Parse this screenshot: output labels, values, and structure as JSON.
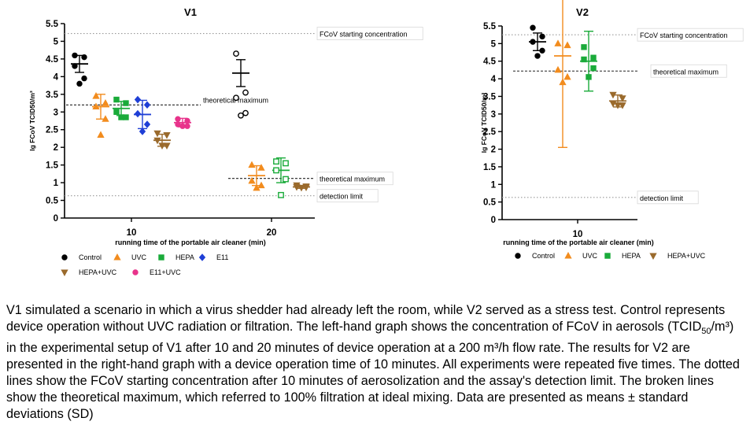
{
  "chart_data": [
    {
      "type": "scatter",
      "title": "V1",
      "xlabel": "running time of the portable air cleaner (min)",
      "ylabel": "lg FCoV TCID50/m³",
      "ylim": [
        0,
        5.5
      ],
      "yticks": [
        "0",
        "0.5",
        "1",
        "1.5",
        "2",
        "2.5",
        "3",
        "3.5",
        "4",
        "4.5",
        "5",
        "5.5"
      ],
      "categories": [
        "10",
        "20"
      ],
      "reference_lines": [
        {
          "label": "FCoV starting concentration",
          "y": 5.22,
          "style": "dotted"
        },
        {
          "label": "detection limit",
          "y": 0.63,
          "style": "dotted"
        },
        {
          "label": "theoretical maximum",
          "y": 3.2,
          "style": "dashed",
          "group": "10"
        },
        {
          "label": "theoretical maximum",
          "y": 1.12,
          "style": "dashed",
          "group": "20"
        }
      ],
      "series": [
        {
          "name": "Control",
          "color": "#000000",
          "marker": "circle",
          "groups": [
            {
              "x": "10",
              "points": [
                4.6,
                4.55,
                4.3,
                3.95,
                3.8
              ],
              "mean": 4.36,
              "sd": 0.24
            },
            {
              "x": "20",
              "hollow": true,
              "points": [
                4.65,
                3.55,
                3.4,
                2.97,
                2.9
              ],
              "mean": 4.1,
              "sd": 0.38
            }
          ]
        },
        {
          "name": "UVC",
          "color": "#f28c1e",
          "marker": "triangle-up",
          "groups": [
            {
              "x": "10",
              "points": [
                3.45,
                3.25,
                3.15,
                2.8,
                2.35
              ],
              "mean": 3.15,
              "sd": 0.35
            },
            {
              "x": "20",
              "points": [
                1.5,
                1.42,
                1.05,
                0.92,
                0.85
              ],
              "mean": 1.2,
              "sd": 0.28
            }
          ]
        },
        {
          "name": "HEPA",
          "color": "#1aab3a",
          "marker": "square",
          "groups": [
            {
              "x": "10",
              "points": [
                3.35,
                3.25,
                3.0,
                2.85,
                2.85
              ],
              "mean": 3.1,
              "sd": 0.2
            },
            {
              "x": "20",
              "hollow": true,
              "points": [
                1.6,
                1.55,
                1.35,
                1.1,
                0.65
              ],
              "mean": 1.35,
              "sd": 0.35
            }
          ]
        },
        {
          "name": "E11",
          "color": "#1f3fd6",
          "marker": "diamond",
          "groups": [
            {
              "x": "10",
              "points": [
                3.35,
                3.2,
                2.95,
                2.65,
                2.45
              ],
              "mean": 2.93,
              "sd": 0.4
            }
          ]
        },
        {
          "name": "HEPA+UVC",
          "color": "#9a6a2c",
          "marker": "triangle-down",
          "groups": [
            {
              "x": "10",
              "points": [
                2.4,
                2.35,
                2.2,
                2.05,
                2.05
              ],
              "mean": 2.2,
              "sd": 0.17
            },
            {
              "x": "20",
              "points": [
                0.93,
                0.9,
                0.88,
                0.87,
                0.86
              ],
              "mean": 0.88,
              "sd": 0.04
            }
          ]
        },
        {
          "name": "E11+UVC",
          "color": "#e8338b",
          "marker": "circle",
          "groups": [
            {
              "x": "10",
              "points": [
                2.8,
                2.75,
                2.65,
                2.6,
                2.6
              ],
              "mean": 2.7,
              "sd": 0.12
            }
          ]
        }
      ]
    },
    {
      "type": "scatter",
      "title": "V2",
      "xlabel": "running time of the portable air cleaner (min)",
      "ylabel": "lg FCoV TCID50/m³",
      "ylim": [
        0,
        5.5
      ],
      "yticks": [
        "0",
        "0.5",
        "1",
        "1.5",
        "2",
        "2.5",
        "3",
        "3.5",
        "4",
        "4.5",
        "5",
        "5.5"
      ],
      "categories": [
        "10"
      ],
      "reference_lines": [
        {
          "label": "FCoV starting concentration",
          "y": 5.25,
          "style": "dotted"
        },
        {
          "label": "theoretical maximum",
          "y": 4.22,
          "style": "dashed"
        },
        {
          "label": "detection limit",
          "y": 0.63,
          "style": "dotted"
        }
      ],
      "series": [
        {
          "name": "Control",
          "color": "#000000",
          "marker": "circle",
          "groups": [
            {
              "x": "10",
              "points": [
                5.45,
                5.2,
                5.05,
                4.8,
                4.65
              ],
              "mean": 5.05,
              "sd": 0.25
            }
          ]
        },
        {
          "name": "UVC",
          "color": "#f28c1e",
          "marker": "triangle-up",
          "groups": [
            {
              "x": "10",
              "points": [
                5.0,
                4.95,
                4.25,
                4.05,
                3.9
              ],
              "mean": 4.65,
              "sd": 2.6
            }
          ]
        },
        {
          "name": "HEPA",
          "color": "#1aab3a",
          "marker": "square",
          "groups": [
            {
              "x": "10",
              "points": [
                4.9,
                4.6,
                4.55,
                4.3,
                4.05
              ],
              "mean": 4.5,
              "sd": 0.85
            }
          ]
        },
        {
          "name": "HEPA+UVC",
          "color": "#9a6a2c",
          "marker": "triangle-down",
          "groups": [
            {
              "x": "10",
              "points": [
                3.55,
                3.45,
                3.3,
                3.25,
                3.25
              ],
              "mean": 3.37,
              "sd": 0.17
            }
          ]
        }
      ]
    }
  ],
  "caption": {
    "p1": "V1 simulated a scenario in which a virus shedder had already left the room, while V2 served as a stress test. Control represents device operation without UVC radiation or filtration. The left-hand graph shows the concentration of FCoV in aerosols (TCID",
    "p1_sub": "50",
    "p2": "/m³) in the experimental setup of V1 after 10 and 20 minutes of device operation at a 200 m³/h flow rate. The results for V2 are presented in the right-hand graph with a device operation time of 10 minutes. All experiments were repeated five times. The dotted lines show the FCoV starting concentration after 10 minutes of aerosolization and the assay's detection limit. The broken lines show the theoretical maximum, which referred to 100% filtration at ideal mixing. Data are presented as means ± standard deviations (SD)"
  }
}
